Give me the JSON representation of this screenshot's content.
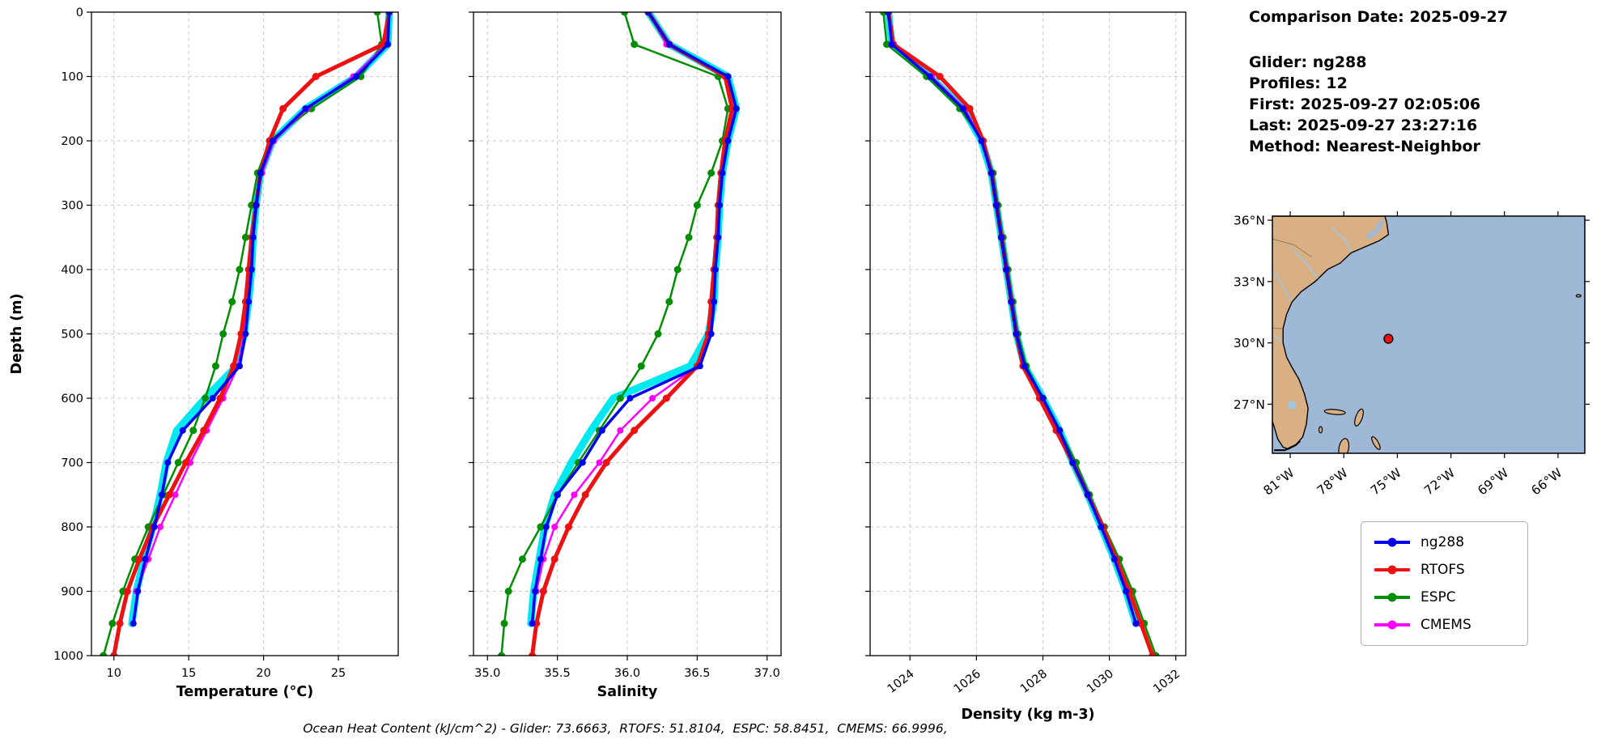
{
  "info": {
    "comparison_date": "Comparison Date: 2025-09-27",
    "glider": "Glider: ng288",
    "profiles": "Profiles: 12",
    "first": "First: 2025-09-27 02:05:06",
    "last": "Last: 2025-09-27 23:27:16",
    "method": "Method: Nearest-Neighbor"
  },
  "caption": "Ocean Heat Content (kJ/cm^2) - Glider: 73.6663,  RTOFS: 51.8104,  ESPC: 58.8451,  CMEMS: 66.9996,",
  "legend": {
    "items": [
      {
        "label": "ng288",
        "color": "#0000f0"
      },
      {
        "label": "RTOFS",
        "color": "#ee1111"
      },
      {
        "label": "ESPC",
        "color": "#008f00"
      },
      {
        "label": "CMEMS",
        "color": "#ff00ff"
      }
    ]
  },
  "chart_data": {
    "type": "line",
    "ylabel": "Depth (m)",
    "ylim": [
      0,
      1000
    ],
    "depth_ticks": [
      0,
      100,
      200,
      300,
      400,
      500,
      600,
      700,
      800,
      900,
      1000
    ],
    "depths_m": [
      0,
      50,
      100,
      150,
      200,
      250,
      300,
      350,
      400,
      450,
      500,
      550,
      600,
      650,
      700,
      750,
      800,
      850,
      900,
      950,
      1000
    ],
    "profiles": [
      {
        "name": "temperature",
        "xlabel": "Temperature (°C)",
        "xlim": [
          8.5,
          29.0
        ],
        "xticks": [
          10,
          15,
          20,
          25
        ],
        "xtick_labels": [
          "10",
          "15",
          "20",
          "25"
        ],
        "series": [
          {
            "name": "glider-raw",
            "color": "#00e8f0",
            "values": [
              28.4,
              28.3,
              26.2,
              22.8,
              20.6,
              19.8,
              19.5,
              19.3,
              19.2,
              19.0,
              18.7,
              18.2,
              16.1,
              14.2,
              13.5,
              13.1,
              12.6,
              12.0,
              11.5,
              11.2,
              null
            ]
          },
          {
            "name": "ESPC",
            "color": "#008f00",
            "values": [
              27.6,
              27.9,
              26.5,
              23.2,
              20.4,
              19.6,
              19.2,
              18.8,
              18.4,
              17.9,
              17.3,
              16.8,
              16.1,
              15.3,
              14.3,
              13.3,
              12.3,
              11.4,
              10.6,
              9.9,
              9.3
            ]
          },
          {
            "name": "CMEMS",
            "color": "#ff00ff",
            "values": [
              28.4,
              28.2,
              26.0,
              22.9,
              20.7,
              19.9,
              19.5,
              19.3,
              19.1,
              18.9,
              18.7,
              18.3,
              17.3,
              16.2,
              15.1,
              14.1,
              13.1,
              12.3,
              11.5,
              null,
              null
            ]
          },
          {
            "name": "RTOFS",
            "color": "#ee1111",
            "values": [
              28.4,
              28.0,
              23.5,
              21.3,
              20.4,
              19.8,
              19.5,
              19.2,
              19.0,
              18.8,
              18.5,
              18.0,
              17.1,
              16.0,
              14.8,
              13.7,
              12.6,
              11.7,
              10.9,
              10.4,
              10.0
            ]
          },
          {
            "name": "ng288",
            "color": "#0000f0",
            "values": [
              28.4,
              28.3,
              26.2,
              22.8,
              20.6,
              19.8,
              19.5,
              19.3,
              19.2,
              19.0,
              18.8,
              18.4,
              16.6,
              14.6,
              13.6,
              13.2,
              12.7,
              12.1,
              11.6,
              11.3,
              null
            ]
          }
        ]
      },
      {
        "name": "salinity",
        "xlabel": "Salinity",
        "xlim": [
          34.9,
          37.1
        ],
        "xticks": [
          35.0,
          35.5,
          36.0,
          36.5,
          37.0
        ],
        "xtick_labels": [
          "35.0",
          "35.5",
          "36.0",
          "36.5",
          "37.0"
        ],
        "series": [
          {
            "name": "glider-raw",
            "color": "#00e8f0",
            "values": [
              36.15,
              36.3,
              36.72,
              36.78,
              36.72,
              36.68,
              36.66,
              36.65,
              36.63,
              36.62,
              36.58,
              36.45,
              35.9,
              35.74,
              35.6,
              35.48,
              35.41,
              35.37,
              35.33,
              35.31,
              null
            ]
          },
          {
            "name": "ESPC",
            "color": "#008f00",
            "values": [
              35.98,
              36.05,
              36.65,
              36.72,
              36.68,
              36.6,
              36.5,
              36.44,
              36.36,
              36.3,
              36.22,
              36.1,
              35.95,
              35.8,
              35.65,
              35.5,
              35.38,
              35.25,
              35.15,
              35.12,
              35.1
            ]
          },
          {
            "name": "CMEMS",
            "color": "#ff00ff",
            "values": [
              36.15,
              36.28,
              36.7,
              36.76,
              36.71,
              36.67,
              36.65,
              36.64,
              36.62,
              36.61,
              36.59,
              36.5,
              36.18,
              35.95,
              35.8,
              35.62,
              35.48,
              35.4,
              35.35,
              null,
              null
            ]
          },
          {
            "name": "RTOFS",
            "color": "#ee1111",
            "values": [
              36.15,
              36.3,
              36.7,
              36.75,
              36.7,
              36.67,
              36.65,
              36.64,
              36.62,
              36.6,
              36.58,
              36.5,
              36.28,
              36.05,
              35.85,
              35.7,
              35.58,
              35.48,
              35.4,
              35.35,
              35.32
            ]
          },
          {
            "name": "ng288",
            "color": "#0000f0",
            "values": [
              36.15,
              36.3,
              36.72,
              36.78,
              36.72,
              36.68,
              36.66,
              36.65,
              36.63,
              36.62,
              36.6,
              36.52,
              36.02,
              35.82,
              35.68,
              35.5,
              35.42,
              35.38,
              35.34,
              35.32,
              null
            ]
          }
        ]
      },
      {
        "name": "density",
        "xlabel": "Density (kg m-3)",
        "xlim": [
          1022.8,
          1032.3
        ],
        "xticks": [
          1024,
          1026,
          1028,
          1030,
          1032
        ],
        "xtick_labels": [
          "1024",
          "1026",
          "1028",
          "1030",
          "1032"
        ],
        "series": [
          {
            "name": "glider-raw",
            "color": "#00e8f0",
            "values": [
              1023.35,
              1023.45,
              1024.6,
              1025.6,
              1026.15,
              1026.45,
              1026.6,
              1026.75,
              1026.9,
              1027.05,
              1027.2,
              1027.45,
              1028.0,
              1028.5,
              1028.9,
              1029.35,
              1029.75,
              1030.15,
              1030.5,
              1030.8,
              null
            ]
          },
          {
            "name": "ESPC",
            "color": "#008f00",
            "values": [
              1023.2,
              1023.3,
              1024.5,
              1025.5,
              1026.2,
              1026.5,
              1026.65,
              1026.8,
              1026.95,
              1027.1,
              1027.25,
              1027.5,
              1028.0,
              1028.5,
              1029.0,
              1029.4,
              1029.85,
              1030.3,
              1030.7,
              1031.05,
              1031.4
            ]
          },
          {
            "name": "CMEMS",
            "color": "#ff00ff",
            "values": [
              1023.35,
              1023.45,
              1024.65,
              1025.65,
              1026.15,
              1026.45,
              1026.6,
              1026.75,
              1026.9,
              1027.05,
              1027.2,
              1027.45,
              1027.95,
              1028.45,
              1028.9,
              1029.35,
              1029.8,
              1030.2,
              1030.55,
              null,
              null
            ]
          },
          {
            "name": "RTOFS",
            "color": "#ee1111",
            "values": [
              1023.35,
              1023.5,
              1024.9,
              1025.8,
              1026.2,
              1026.45,
              1026.6,
              1026.75,
              1026.9,
              1027.05,
              1027.2,
              1027.4,
              1027.9,
              1028.4,
              1028.9,
              1029.35,
              1029.8,
              1030.2,
              1030.6,
              1030.95,
              1031.3
            ]
          },
          {
            "name": "ng288",
            "color": "#0000f0",
            "values": [
              1023.35,
              1023.45,
              1024.6,
              1025.6,
              1026.15,
              1026.45,
              1026.6,
              1026.75,
              1026.9,
              1027.05,
              1027.2,
              1027.45,
              1028.0,
              1028.5,
              1028.9,
              1029.35,
              1029.75,
              1030.15,
              1030.5,
              1030.8,
              null
            ]
          }
        ]
      }
    ]
  },
  "map": {
    "extent": {
      "lon_min": -82.0,
      "lon_max": -64.5,
      "lat_min": 24.6,
      "lat_max": 36.2
    },
    "lat_ticks": [
      {
        "v": 36,
        "label": "36°N"
      },
      {
        "v": 33,
        "label": "33°N"
      },
      {
        "v": 30,
        "label": "30°N"
      },
      {
        "v": 27,
        "label": "27°N"
      }
    ],
    "lon_ticks": [
      {
        "v": -81,
        "label": "81°W"
      },
      {
        "v": -78,
        "label": "78°W"
      },
      {
        "v": -75,
        "label": "75°W"
      },
      {
        "v": -72,
        "label": "72°W"
      },
      {
        "v": -69,
        "label": "69°W"
      },
      {
        "v": -66,
        "label": "66°W"
      }
    ],
    "marker": {
      "lon": -75.5,
      "lat": 30.2
    },
    "colors": {
      "land": "#d8b083",
      "ocean": "#9fb8d6",
      "coast": "#000000",
      "marker": "#ee1111",
      "water_detail": "#9cc8e8"
    }
  }
}
